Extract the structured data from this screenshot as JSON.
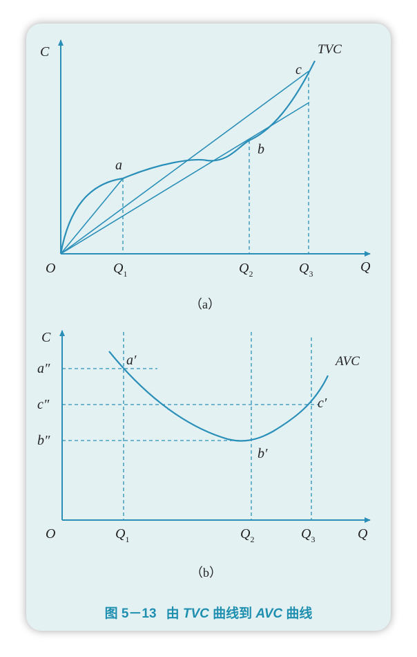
{
  "panel_a": {
    "y_axis": "C",
    "x_axis": "Q",
    "origin": "O",
    "curve_label": "TVC",
    "point_a": "a",
    "point_b": "b",
    "point_c": "c",
    "q1": "Q",
    "q1_sub": "1",
    "q2": "Q",
    "q2_sub": "2",
    "q3": "Q",
    "q3_sub": "3",
    "panel_label": "（a）"
  },
  "panel_b": {
    "y_axis": "C",
    "x_axis": "Q",
    "origin": "O",
    "curve_label": "AVC",
    "point_a": "a′",
    "point_b": "b′",
    "point_c": "c′",
    "level_a": "a″",
    "level_b": "b″",
    "level_c": "c″",
    "q1": "Q",
    "q1_sub": "1",
    "q2": "Q",
    "q2_sub": "2",
    "q3": "Q",
    "q3_sub": "3",
    "panel_label": "（b）"
  },
  "caption": {
    "number": "图 5－13",
    "pre": "由 ",
    "tvc": "TVC",
    "mid": " 曲线到 ",
    "avc": "AVC",
    "post": " 曲线"
  },
  "colors": {
    "line": "#2a8fb8",
    "background": "#e4f1f3",
    "caption": "#1f8fb0"
  }
}
